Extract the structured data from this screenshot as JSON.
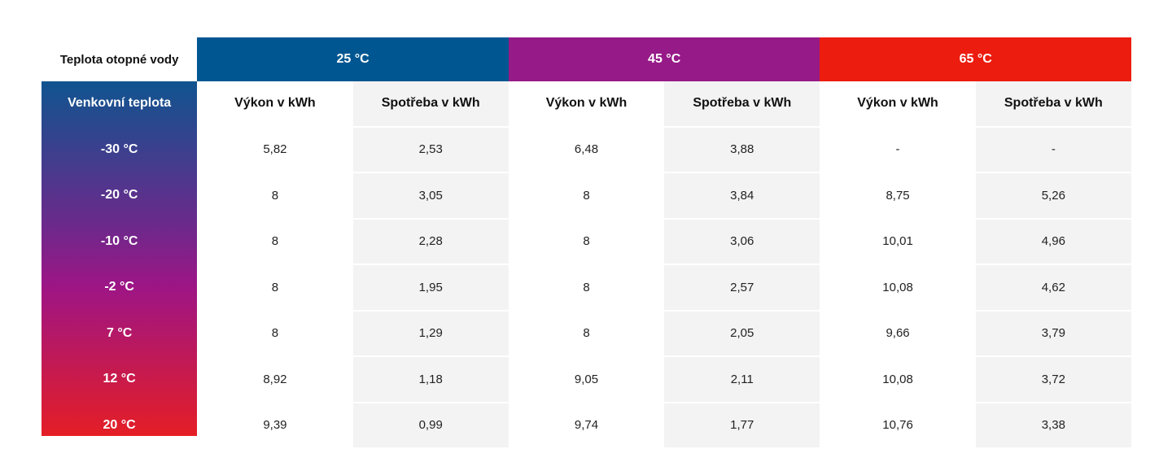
{
  "table": {
    "corner_label": "Teplota otopné vody",
    "water_temps": [
      {
        "label": "25 °C",
        "color": "#005691"
      },
      {
        "label": "45 °C",
        "color": "#961a87"
      },
      {
        "label": "65 °C",
        "color": "#ec1c0e"
      }
    ],
    "outdoor_label": "Venkovní teplota",
    "column_headers": [
      "Výkon v kWh",
      "Spotřeba v kWh",
      "Výkon v kWh",
      "Spotřeba v kWh",
      "Výkon v kWh",
      "Spotřeba v kWh"
    ],
    "rows": [
      {
        "temp": "-30 °C",
        "values": [
          "5,82",
          "2,53",
          "6,48",
          "3,88",
          "-",
          "-"
        ]
      },
      {
        "temp": "-20 °C",
        "values": [
          "8",
          "3,05",
          "8",
          "3,84",
          "8,75",
          "5,26"
        ]
      },
      {
        "temp": "-10 °C",
        "values": [
          "8",
          "2,28",
          "8",
          "3,06",
          "10,01",
          "4,96"
        ]
      },
      {
        "temp": "-2 °C",
        "values": [
          "8",
          "1,95",
          "8",
          "2,57",
          "10,08",
          "4,62"
        ]
      },
      {
        "temp": "7 °C",
        "values": [
          "8",
          "1,29",
          "8",
          "2,05",
          "9,66",
          "3,79"
        ]
      },
      {
        "temp": "12 °C",
        "values": [
          "8,92",
          "1,18",
          "9,05",
          "2,11",
          "10,08",
          "3,72"
        ]
      },
      {
        "temp": "20 °C",
        "values": [
          "9,39",
          "0,99",
          "9,74",
          "1,77",
          "10,76",
          "3,38"
        ]
      }
    ]
  }
}
